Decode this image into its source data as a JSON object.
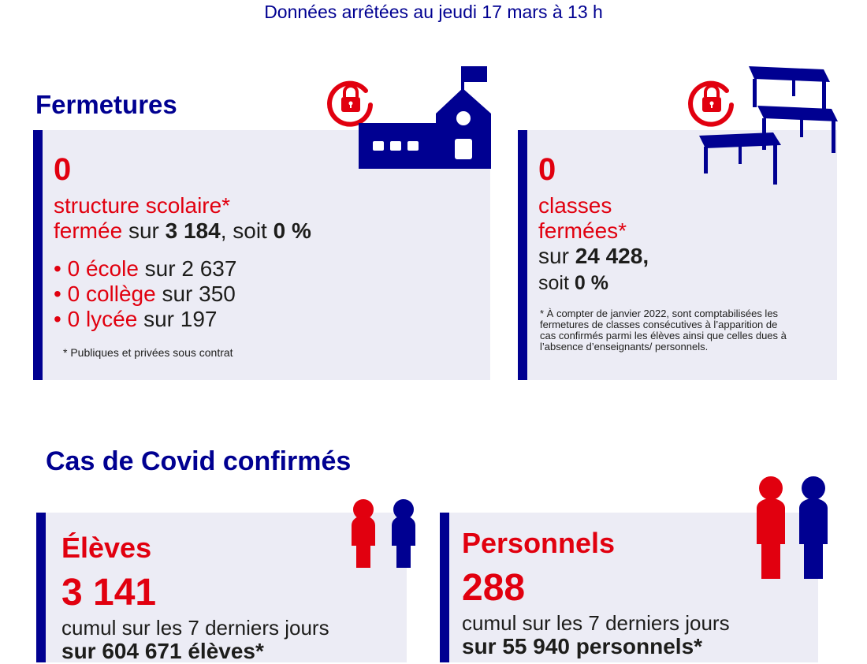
{
  "header": {
    "date_text": "Données arrêtées au jeudi 17 mars à 13 h"
  },
  "fermetures": {
    "title": "Fermetures",
    "structures": {
      "count": "0",
      "label_line1": "structure scolaire*",
      "label_red2": "fermée",
      "sur": "sur",
      "total": "3 184",
      "soit": ", soit",
      "pct": "0 %",
      "items": [
        {
          "bullet": "•",
          "count": "0",
          "name": "école",
          "sur": "sur 2 637"
        },
        {
          "bullet": "•",
          "count": "0",
          "name": "collège",
          "sur": "sur 350"
        },
        {
          "bullet": "•",
          "count": "0",
          "name": "lycée",
          "sur": "sur 197"
        }
      ],
      "footnote": "* Publiques et privées sous contrat"
    },
    "classes": {
      "count": "0",
      "label_line1": "classes",
      "label_line2": "fermées*",
      "sur": "sur",
      "total": "24 428,",
      "soit": "soit",
      "pct": "0 %",
      "footnote_lines": [
        "* À compter de janvier 2022, sont comptabilisées les",
        "fermetures de classes consécutives à l’apparition de",
        "cas confirmés parmi les élèves ainsi que celles dues à",
        "l’absence d’enseignants/ personnels."
      ]
    }
  },
  "covid": {
    "title": "Cas de Covid confirmés",
    "eleves": {
      "title": "Élèves",
      "count": "3 141",
      "cumul": "cumul sur les 7 derniers jours",
      "sur_partial": "sur 604 671 élèves*"
    },
    "personnels": {
      "title": "Personnels",
      "count": "288",
      "cumul": "cumul sur les 7 derniers jours",
      "sur_partial": "sur 55 940 personnels*"
    }
  },
  "icons": {
    "lock_1": "lock-icon",
    "school": "school-building-icon",
    "lock_2": "lock-icon",
    "desks": "classroom-desks-icon",
    "pupils": "pupils-icon",
    "staff": "staff-people-icon"
  },
  "colors": {
    "navy": "#000091",
    "red": "#e1000f",
    "card_bg": "#ececf5"
  }
}
